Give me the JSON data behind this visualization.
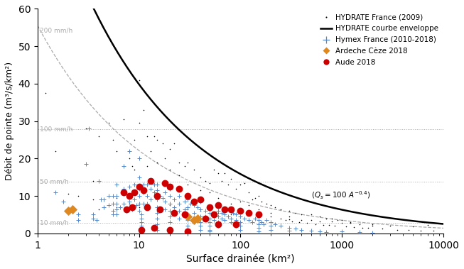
{
  "xlabel": "Surface drainée (km²)",
  "ylabel": "Débit de pointe (m³/s/km²)",
  "xlim": [
    1,
    10000
  ],
  "ylim": [
    0,
    60
  ],
  "envelope_coef": 100,
  "envelope_exp": -0.4,
  "envelope_annotation": "(Q_s = 100 A^{-0.4})",
  "rainfall_lines": [
    {
      "intensity": 200,
      "label": "200 mm/h",
      "dashed": true
    },
    {
      "intensity": 100,
      "label": "100 mm/h",
      "dashed": false
    },
    {
      "intensity": 50,
      "label": "50 mm/h",
      "dashed": false
    },
    {
      "intensity": 10,
      "label": "10 mm/h",
      "dashed": false
    }
  ],
  "hydrate_dots": [
    [
      1.2,
      37.5
    ],
    [
      1.5,
      22.0
    ],
    [
      2.0,
      10.5
    ],
    [
      3.0,
      28.0
    ],
    [
      3.5,
      14.0
    ],
    [
      4.0,
      26.0
    ],
    [
      5.0,
      29.5
    ],
    [
      5.5,
      25.0
    ],
    [
      6.0,
      22.0
    ],
    [
      7.0,
      30.5
    ],
    [
      8.0,
      20.0
    ],
    [
      9.0,
      25.0
    ],
    [
      10.0,
      41.0
    ],
    [
      11.0,
      33.0
    ],
    [
      12.0,
      26.0
    ],
    [
      13.0,
      22.0
    ],
    [
      14.0,
      26.0
    ],
    [
      15.0,
      25.0
    ],
    [
      17.0,
      24.0
    ],
    [
      18.0,
      20.0
    ],
    [
      20.0,
      22.5
    ],
    [
      22.0,
      24.0
    ],
    [
      25.0,
      19.0
    ],
    [
      28.0,
      18.0
    ],
    [
      30.0,
      19.0
    ],
    [
      35.0,
      17.0
    ],
    [
      40.0,
      15.0
    ],
    [
      45.0,
      14.0
    ],
    [
      50.0,
      13.5
    ],
    [
      55.0,
      17.0
    ],
    [
      60.0,
      16.0
    ],
    [
      65.0,
      14.0
    ],
    [
      70.0,
      16.0
    ],
    [
      75.0,
      13.0
    ],
    [
      80.0,
      14.5
    ],
    [
      90.0,
      12.0
    ],
    [
      100.0,
      13.0
    ],
    [
      110.0,
      13.5
    ],
    [
      120.0,
      11.0
    ],
    [
      130.0,
      9.0
    ],
    [
      140.0,
      9.5
    ],
    [
      150.0,
      10.0
    ],
    [
      160.0,
      8.5
    ],
    [
      180.0,
      8.0
    ],
    [
      200.0,
      7.5
    ],
    [
      220.0,
      7.0
    ],
    [
      250.0,
      6.5
    ],
    [
      300.0,
      6.0
    ],
    [
      350.0,
      5.5
    ],
    [
      400.0,
      5.0
    ],
    [
      500.0,
      5.0
    ],
    [
      600.0,
      4.5
    ],
    [
      700.0,
      4.0
    ],
    [
      800.0,
      4.0
    ],
    [
      900.0,
      3.5
    ],
    [
      1000.0,
      3.5
    ],
    [
      1200.0,
      3.0
    ],
    [
      1500.0,
      2.5
    ],
    [
      2000.0,
      2.0
    ],
    [
      3000.0,
      2.0
    ],
    [
      5000.0,
      1.8
    ],
    [
      7000.0,
      2.2
    ],
    [
      2.5,
      10.0
    ],
    [
      3.5,
      9.0
    ],
    [
      6.0,
      9.5
    ],
    [
      8.5,
      18.0
    ],
    [
      9.0,
      17.0
    ],
    [
      10.0,
      29.5
    ],
    [
      12.0,
      18.0
    ],
    [
      15.0,
      19.0
    ],
    [
      20.0,
      17.0
    ],
    [
      25.0,
      15.5
    ],
    [
      30.0,
      13.0
    ],
    [
      40.0,
      11.5
    ],
    [
      50.0,
      11.0
    ],
    [
      60.0,
      9.5
    ],
    [
      80.0,
      8.0
    ],
    [
      100.0,
      8.5
    ],
    [
      120.0,
      7.5
    ],
    [
      150.0,
      6.5
    ],
    [
      200.0,
      5.5
    ],
    [
      300.0,
      4.5
    ],
    [
      500.0,
      3.5
    ],
    [
      800.0,
      3.2
    ],
    [
      1200.0,
      2.8
    ],
    [
      2000.0,
      2.5
    ],
    [
      4.0,
      6.5
    ],
    [
      6.0,
      7.0
    ],
    [
      8.0,
      8.0
    ],
    [
      10.0,
      7.0
    ],
    [
      15.0,
      6.0
    ],
    [
      20.0,
      7.5
    ],
    [
      25.0,
      6.0
    ],
    [
      30.0,
      6.5
    ],
    [
      40.0,
      6.0
    ],
    [
      50.0,
      6.5
    ],
    [
      60.0,
      5.5
    ],
    [
      80.0,
      5.0
    ],
    [
      100.0,
      5.5
    ],
    [
      150.0,
      5.0
    ],
    [
      200.0,
      4.5
    ],
    [
      300.0,
      3.8
    ],
    [
      400.0,
      3.5
    ],
    [
      600.0,
      3.2
    ],
    [
      1000.0,
      2.8
    ],
    [
      250.0,
      4.0
    ],
    [
      280.0,
      3.5
    ],
    [
      320.0,
      3.2
    ],
    [
      380.0,
      3.0
    ],
    [
      450.0,
      2.8
    ],
    [
      550.0,
      2.5
    ],
    [
      650.0,
      2.3
    ],
    [
      750.0,
      2.2
    ],
    [
      850.0,
      2.0
    ],
    [
      1100.0,
      1.8
    ],
    [
      1300.0,
      1.6
    ],
    [
      1600.0,
      1.5
    ],
    [
      1800.0,
      1.4
    ],
    [
      2500.0,
      1.2
    ],
    [
      3500.0,
      1.0
    ],
    [
      4500.0,
      0.9
    ],
    [
      6000.0,
      0.8
    ],
    [
      8000.0,
      0.7
    ]
  ],
  "hymex_dots": [
    [
      1.5,
      11.0
    ],
    [
      1.8,
      8.5
    ],
    [
      2.0,
      6.5
    ],
    [
      2.5,
      5.0
    ],
    [
      2.5,
      3.5
    ],
    [
      3.0,
      18.5
    ],
    [
      3.2,
      28.0
    ],
    [
      3.5,
      5.0
    ],
    [
      3.5,
      4.0
    ],
    [
      3.8,
      3.5
    ],
    [
      4.0,
      14.0
    ],
    [
      4.2,
      9.0
    ],
    [
      4.5,
      9.0
    ],
    [
      4.5,
      7.0
    ],
    [
      5.0,
      10.0
    ],
    [
      5.0,
      7.5
    ],
    [
      5.5,
      10.0
    ],
    [
      5.5,
      8.0
    ],
    [
      5.5,
      6.0
    ],
    [
      5.5,
      5.0
    ],
    [
      6.0,
      13.0
    ],
    [
      6.0,
      10.0
    ],
    [
      6.0,
      8.0
    ],
    [
      6.0,
      6.5
    ],
    [
      6.0,
      5.0
    ],
    [
      6.5,
      7.0
    ],
    [
      7.0,
      18.0
    ],
    [
      7.0,
      12.0
    ],
    [
      7.0,
      8.0
    ],
    [
      7.5,
      6.0
    ],
    [
      8.0,
      22.0
    ],
    [
      8.0,
      12.5
    ],
    [
      8.0,
      10.0
    ],
    [
      8.0,
      8.5
    ],
    [
      8.0,
      7.0
    ],
    [
      8.5,
      6.5
    ],
    [
      9.0,
      13.0
    ],
    [
      9.0,
      9.0
    ],
    [
      9.5,
      7.5
    ],
    [
      10.0,
      20.0
    ],
    [
      10.0,
      15.0
    ],
    [
      10.0,
      12.0
    ],
    [
      10.0,
      10.0
    ],
    [
      10.0,
      8.0
    ],
    [
      10.0,
      6.0
    ],
    [
      10.5,
      5.0
    ],
    [
      10.5,
      4.0
    ],
    [
      10.5,
      3.0
    ],
    [
      10.5,
      2.0
    ],
    [
      11.0,
      13.0
    ],
    [
      11.0,
      11.0
    ],
    [
      11.0,
      8.0
    ],
    [
      12.0,
      13.0
    ],
    [
      12.0,
      10.0
    ],
    [
      12.0,
      8.0
    ],
    [
      13.0,
      12.0
    ],
    [
      13.0,
      9.0
    ],
    [
      14.0,
      13.0
    ],
    [
      14.0,
      11.0
    ],
    [
      15.0,
      13.0
    ],
    [
      15.0,
      11.5
    ],
    [
      15.0,
      9.0
    ],
    [
      15.0,
      7.0
    ],
    [
      15.0,
      5.5
    ],
    [
      15.0,
      4.0
    ],
    [
      15.0,
      2.5
    ],
    [
      15.0,
      1.0
    ],
    [
      16.0,
      10.0
    ],
    [
      17.0,
      9.5
    ],
    [
      18.0,
      13.5
    ],
    [
      18.0,
      11.0
    ],
    [
      18.0,
      8.5
    ],
    [
      18.0,
      6.5
    ],
    [
      20.0,
      12.0
    ],
    [
      20.0,
      10.0
    ],
    [
      20.0,
      8.0
    ],
    [
      20.0,
      6.0
    ],
    [
      20.0,
      4.5
    ],
    [
      20.0,
      3.0
    ],
    [
      22.0,
      9.0
    ],
    [
      22.0,
      7.0
    ],
    [
      25.0,
      10.0
    ],
    [
      25.0,
      8.0
    ],
    [
      25.0,
      6.0
    ],
    [
      25.0,
      4.0
    ],
    [
      28.0,
      8.5
    ],
    [
      28.0,
      6.5
    ],
    [
      30.0,
      9.0
    ],
    [
      30.0,
      7.0
    ],
    [
      30.0,
      5.0
    ],
    [
      30.0,
      3.5
    ],
    [
      30.0,
      2.0
    ],
    [
      30.0,
      1.0
    ],
    [
      32.0,
      8.0
    ],
    [
      35.0,
      7.5
    ],
    [
      35.0,
      5.5
    ],
    [
      38.0,
      7.0
    ],
    [
      40.0,
      8.5
    ],
    [
      40.0,
      6.5
    ],
    [
      40.0,
      4.5
    ],
    [
      40.0,
      3.0
    ],
    [
      40.0,
      2.0
    ],
    [
      40.0,
      1.0
    ],
    [
      45.0,
      6.0
    ],
    [
      45.0,
      4.5
    ],
    [
      50.0,
      7.0
    ],
    [
      50.0,
      5.5
    ],
    [
      50.0,
      4.0
    ],
    [
      50.0,
      3.0
    ],
    [
      50.0,
      2.0
    ],
    [
      50.0,
      1.0
    ],
    [
      50.0,
      0.5
    ],
    [
      55.0,
      5.0
    ],
    [
      55.0,
      3.5
    ],
    [
      60.0,
      6.0
    ],
    [
      60.0,
      4.5
    ],
    [
      60.0,
      3.0
    ],
    [
      60.0,
      2.0
    ],
    [
      65.0,
      5.5
    ],
    [
      65.0,
      4.0
    ],
    [
      70.0,
      5.0
    ],
    [
      70.0,
      3.5
    ],
    [
      75.0,
      4.5
    ],
    [
      80.0,
      4.0
    ],
    [
      80.0,
      3.0
    ],
    [
      85.0,
      5.5
    ],
    [
      90.0,
      5.0
    ],
    [
      90.0,
      3.5
    ],
    [
      90.0,
      2.0
    ],
    [
      100.0,
      4.5
    ],
    [
      100.0,
      3.0
    ],
    [
      100.0,
      2.0
    ],
    [
      100.0,
      1.0
    ],
    [
      110.0,
      4.0
    ],
    [
      120.0,
      3.5
    ],
    [
      130.0,
      3.0
    ],
    [
      140.0,
      4.0
    ],
    [
      150.0,
      3.5
    ],
    [
      150.0,
      2.5
    ],
    [
      150.0,
      1.5
    ],
    [
      150.0,
      0.5
    ],
    [
      160.0,
      3.0
    ],
    [
      170.0,
      2.5
    ],
    [
      180.0,
      3.5
    ],
    [
      200.0,
      3.0
    ],
    [
      200.0,
      2.0
    ],
    [
      200.0,
      1.0
    ],
    [
      220.0,
      2.5
    ],
    [
      250.0,
      2.0
    ],
    [
      300.0,
      1.5
    ],
    [
      300.0,
      0.8
    ],
    [
      350.0,
      1.2
    ],
    [
      400.0,
      1.0
    ],
    [
      500.0,
      0.8
    ],
    [
      600.0,
      0.5
    ],
    [
      700.0,
      0.3
    ],
    [
      1000.0,
      0.5
    ],
    [
      1500.0,
      0.3
    ],
    [
      2000.0,
      0.2
    ]
  ],
  "ardeche_dots": [
    [
      2.0,
      6.0
    ],
    [
      2.2,
      6.5
    ],
    [
      30.0,
      4.5
    ],
    [
      35.0,
      3.5
    ],
    [
      38.0,
      4.0
    ]
  ],
  "aude_dots": [
    [
      7.0,
      11.0
    ],
    [
      8.0,
      10.0
    ],
    [
      9.0,
      11.0
    ],
    [
      10.0,
      12.5
    ],
    [
      11.0,
      11.5
    ],
    [
      13.0,
      14.0
    ],
    [
      15.0,
      10.0
    ],
    [
      18.0,
      13.5
    ],
    [
      20.0,
      12.5
    ],
    [
      25.0,
      12.0
    ],
    [
      30.0,
      10.0
    ],
    [
      35.0,
      8.5
    ],
    [
      40.0,
      9.0
    ],
    [
      50.0,
      7.0
    ],
    [
      60.0,
      7.5
    ],
    [
      70.0,
      6.5
    ],
    [
      80.0,
      6.5
    ],
    [
      100.0,
      6.0
    ],
    [
      120.0,
      5.5
    ],
    [
      150.0,
      5.0
    ],
    [
      7.5,
      6.5
    ],
    [
      8.5,
      7.0
    ],
    [
      12.0,
      7.0
    ],
    [
      16.0,
      6.5
    ],
    [
      22.0,
      5.5
    ],
    [
      28.0,
      5.0
    ],
    [
      45.0,
      4.0
    ],
    [
      55.0,
      5.0
    ],
    [
      90.0,
      2.5
    ],
    [
      10.5,
      1.0
    ],
    [
      14.0,
      1.5
    ],
    [
      20.0,
      1.0
    ],
    [
      30.0,
      0.5
    ],
    [
      60.0,
      2.5
    ]
  ],
  "hydrate_color": "#000000",
  "hymex_color": "#5588cc",
  "ardeche_color": "#e08820",
  "aude_color": "#cc0000",
  "envelope_color": "#000000",
  "rainfall_color": "#aaaaaa",
  "legend_entries": [
    "HYDRATE France (2009)",
    "HYDRATE courbe enveloppe",
    "Hymex France (2010-2018)",
    "Ardeche Cèze 2018",
    "Aude 2018"
  ]
}
